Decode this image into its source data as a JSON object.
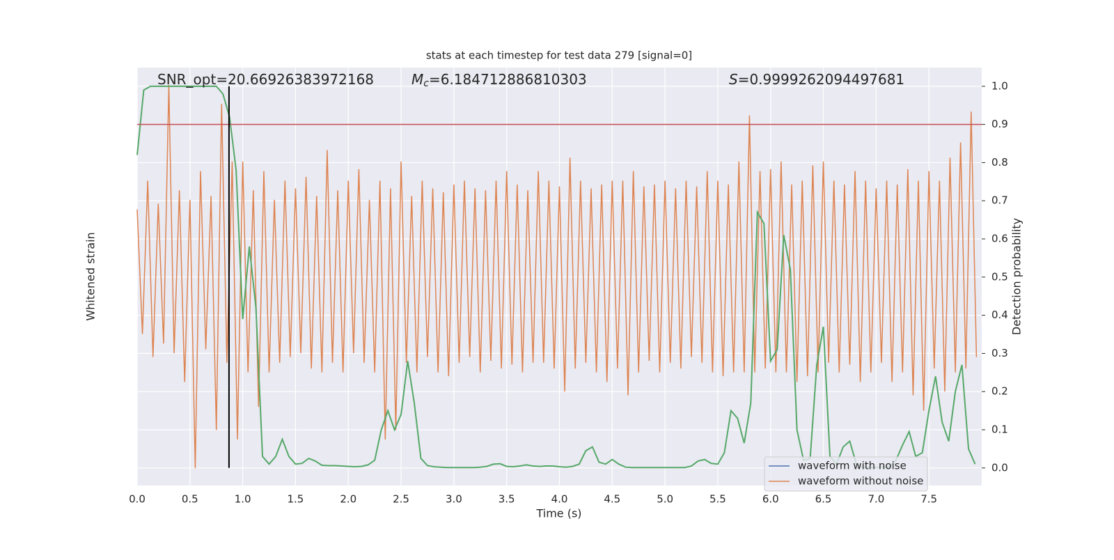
{
  "chart_data": {
    "type": "line",
    "title": "stats at each timestep for test data 279 [signal=0]",
    "xlabel": "Time (s)",
    "ylabel": "Whitened strain",
    "y2label": "Detection probability",
    "xlim": [
      0,
      8
    ],
    "ylim": [
      -1.09,
      1.09
    ],
    "y2lim": [
      -0.046,
      1.049
    ],
    "xticks": [
      {
        "value": 0,
        "label": "0.0"
      },
      {
        "value": 0.5,
        "label": "0.5"
      },
      {
        "value": 1,
        "label": "1.0"
      },
      {
        "value": 1.5,
        "label": "1.5"
      },
      {
        "value": 2,
        "label": "2.0"
      },
      {
        "value": 2.5,
        "label": "2.5"
      },
      {
        "value": 3,
        "label": "3.0"
      },
      {
        "value": 3.5,
        "label": "3.5"
      },
      {
        "value": 4,
        "label": "4.0"
      },
      {
        "value": 4.5,
        "label": "4.5"
      },
      {
        "value": 5,
        "label": "5.0"
      },
      {
        "value": 5.5,
        "label": "5.5"
      },
      {
        "value": 6,
        "label": "6.0"
      },
      {
        "value": 6.5,
        "label": "6.5"
      },
      {
        "value": 7,
        "label": "7.0"
      },
      {
        "value": 7.5,
        "label": "7.5"
      }
    ],
    "y2ticks": [
      {
        "value": 0,
        "label": "0.0"
      },
      {
        "value": 0.1,
        "label": "0.1"
      },
      {
        "value": 0.2,
        "label": "0.2"
      },
      {
        "value": 0.3,
        "label": "0.3"
      },
      {
        "value": 0.4,
        "label": "0.4"
      },
      {
        "value": 0.5,
        "label": "0.5"
      },
      {
        "value": 0.6,
        "label": "0.6"
      },
      {
        "value": 0.7,
        "label": "0.7"
      },
      {
        "value": 0.8,
        "label": "0.8"
      },
      {
        "value": 0.9,
        "label": "0.9"
      },
      {
        "value": 1,
        "label": "1.0"
      }
    ],
    "grid": true,
    "legend": "lower right",
    "annotations": [
      {
        "text": "SNR_opt=20.66926383972168"
      },
      {
        "italic": "M",
        "sub": "c",
        "text": "=6.184712886810303"
      },
      {
        "italic": "S",
        "text": "=0.9999262094497681"
      }
    ],
    "hline": {
      "value": 0.9,
      "color": "#c44e52",
      "axis": "y2"
    },
    "vline": {
      "x": 0.87,
      "color": "#000000"
    },
    "series": [
      {
        "name": "waveform with noise",
        "color": "#4c72b0",
        "x": [],
        "values": []
      },
      {
        "name": "waveform without noise",
        "color": "#dd8452",
        "x": [
          0,
          0.05,
          0.1,
          0.15,
          0.2,
          0.25,
          0.3,
          0.35,
          0.4,
          0.45,
          0.5,
          0.55,
          0.6,
          0.65,
          0.7,
          0.75,
          0.8,
          0.85,
          0.9,
          0.95,
          1,
          1.05,
          1.1,
          1.15,
          1.2,
          1.25,
          1.3,
          1.35,
          1.4,
          1.45,
          1.5,
          1.55,
          1.6,
          1.65,
          1.7,
          1.75,
          1.8,
          1.85,
          1.9,
          1.95,
          2,
          2.05,
          2.1,
          2.15,
          2.2,
          2.25,
          2.3,
          2.35,
          2.4,
          2.45,
          2.5,
          2.55,
          2.6,
          2.65,
          2.7,
          2.75,
          2.8,
          2.85,
          2.9,
          2.95,
          3,
          3.05,
          3.1,
          3.15,
          3.2,
          3.25,
          3.3,
          3.35,
          3.4,
          3.45,
          3.5,
          3.55,
          3.6,
          3.65,
          3.7,
          3.75,
          3.8,
          3.85,
          3.9,
          3.95,
          4,
          4.05,
          4.1,
          4.15,
          4.2,
          4.25,
          4.3,
          4.35,
          4.4,
          4.45,
          4.5,
          4.55,
          4.6,
          4.65,
          4.7,
          4.75,
          4.8,
          4.85,
          4.9,
          4.95,
          5,
          5.05,
          5.1,
          5.15,
          5.2,
          5.25,
          5.3,
          5.35,
          5.4,
          5.45,
          5.5,
          5.55,
          5.6,
          5.65,
          5.7,
          5.75,
          5.8,
          5.85,
          5.9,
          5.95,
          6,
          6.05,
          6.1,
          6.15,
          6.2,
          6.25,
          6.3,
          6.35,
          6.4,
          6.45,
          6.5,
          6.55,
          6.6,
          6.65,
          6.7,
          6.75,
          6.8,
          6.85,
          6.9,
          6.95,
          7,
          7.05,
          7.1,
          7.15,
          7.2,
          7.25,
          7.3,
          7.35,
          7.4,
          7.45,
          7.5,
          7.55,
          7.6,
          7.65,
          7.7,
          7.75,
          7.8,
          7.85,
          7.9,
          7.95
        ],
        "values": [
          0.35,
          -0.3,
          0.5,
          -0.42,
          0.38,
          -0.35,
          1.0,
          -0.4,
          0.45,
          -0.55,
          0.4,
          -1.0,
          0.55,
          -0.38,
          0.42,
          -0.8,
          0.9,
          -0.45,
          0.6,
          -0.85,
          0.6,
          -0.5,
          0.45,
          -0.68,
          0.55,
          -0.5,
          0.4,
          -0.45,
          0.5,
          -0.42,
          0.46,
          -0.4,
          0.52,
          -0.48,
          0.42,
          -0.5,
          0.66,
          -0.45,
          0.45,
          -0.5,
          0.5,
          -0.4,
          0.56,
          -0.45,
          0.4,
          -0.5,
          0.5,
          -0.85,
          0.46,
          -0.8,
          0.6,
          -0.45,
          0.42,
          -0.5,
          0.5,
          -0.42,
          0.46,
          -0.5,
          0.44,
          -0.52,
          0.48,
          -0.45,
          0.5,
          -0.42,
          0.46,
          -0.5,
          0.45,
          -0.44,
          0.5,
          -0.48,
          0.55,
          -0.46,
          0.48,
          -0.5,
          0.45,
          -0.45,
          0.55,
          -0.45,
          0.5,
          -0.48,
          0.47,
          -0.6,
          0.62,
          -0.48,
          0.5,
          -0.45,
          0.46,
          -0.5,
          0.48,
          -0.55,
          0.5,
          -0.48,
          0.5,
          -0.62,
          0.55,
          -0.5,
          0.47,
          -0.44,
          0.48,
          -0.5,
          0.5,
          -0.45,
          0.46,
          -0.48,
          0.5,
          -0.42,
          0.47,
          -0.45,
          0.55,
          -0.5,
          0.5,
          -0.52,
          0.48,
          -0.5,
          0.6,
          -0.5,
          0.84,
          -0.5,
          0.55,
          -0.48,
          0.56,
          -0.5,
          0.6,
          -0.5,
          0.48,
          -0.55,
          0.5,
          -0.52,
          0.58,
          -0.5,
          0.6,
          -0.45,
          0.5,
          -0.5,
          0.48,
          -0.46,
          0.55,
          -0.55,
          0.5,
          -0.5,
          0.46,
          -0.45,
          0.5,
          -0.55,
          0.48,
          -0.5,
          0.56,
          -0.62,
          0.5,
          -0.7,
          0.55,
          -0.48,
          0.5,
          -0.6,
          0.62,
          -0.5,
          0.7,
          -0.48,
          0.86,
          -0.42
        ]
      },
      {
        "color": "#55a868",
        "axis": "y2",
        "x": [
          0,
          0.0625,
          0.125,
          0.1875,
          0.25,
          0.3125,
          0.375,
          0.4375,
          0.5,
          0.5625,
          0.625,
          0.6875,
          0.75,
          0.8125,
          0.875,
          0.9375,
          1,
          1.0625,
          1.125,
          1.1875,
          1.25,
          1.3125,
          1.375,
          1.4375,
          1.5,
          1.5625,
          1.625,
          1.6875,
          1.75,
          1.8125,
          1.875,
          1.9375,
          2,
          2.0625,
          2.125,
          2.1875,
          2.25,
          2.3125,
          2.375,
          2.4375,
          2.5,
          2.5625,
          2.625,
          2.6875,
          2.75,
          2.8125,
          2.875,
          2.9375,
          3,
          3.0625,
          3.125,
          3.1875,
          3.25,
          3.3125,
          3.375,
          3.4375,
          3.5,
          3.5625,
          3.625,
          3.6875,
          3.75,
          3.8125,
          3.875,
          3.9375,
          4,
          4.0625,
          4.125,
          4.1875,
          4.25,
          4.3125,
          4.375,
          4.4375,
          4.5,
          4.5625,
          4.625,
          4.6875,
          4.75,
          4.8125,
          4.875,
          4.9375,
          5,
          5.0625,
          5.125,
          5.1875,
          5.25,
          5.3125,
          5.375,
          5.4375,
          5.5,
          5.5625,
          5.625,
          5.6875,
          5.75,
          5.8125,
          5.875,
          5.9375,
          6,
          6.0625,
          6.125,
          6.1875,
          6.25,
          6.3125,
          6.375,
          6.4375,
          6.5,
          6.5625,
          6.625,
          6.6875,
          6.75,
          6.8125,
          6.875,
          6.9375,
          7,
          7.0625,
          7.125,
          7.1875,
          7.25,
          7.3125,
          7.375,
          7.4375,
          7.5,
          7.5625,
          7.625,
          7.6875,
          7.75,
          7.8125,
          7.875,
          7.9375
        ],
        "values": [
          0.82,
          0.99,
          1.0,
          1.0,
          1.0,
          1.0,
          1.0,
          1.0,
          1.0,
          1.0,
          1.0,
          1.0,
          1.0,
          0.98,
          0.92,
          0.78,
          0.39,
          0.58,
          0.42,
          0.03,
          0.01,
          0.03,
          0.075,
          0.03,
          0.01,
          0.012,
          0.025,
          0.018,
          0.007,
          0.006,
          0.006,
          0.005,
          0.004,
          0.003,
          0.004,
          0.008,
          0.02,
          0.1,
          0.15,
          0.1,
          0.14,
          0.28,
          0.17,
          0.025,
          0.006,
          0.003,
          0.002,
          0.001,
          0.001,
          0.001,
          0.001,
          0.001,
          0.002,
          0.004,
          0.01,
          0.011,
          0.004,
          0.003,
          0.005,
          0.008,
          0.005,
          0.004,
          0.005,
          0.005,
          0.003,
          0.002,
          0.004,
          0.01,
          0.045,
          0.055,
          0.015,
          0.01,
          0.022,
          0.01,
          0.002,
          0.001,
          0.001,
          0.001,
          0.001,
          0.001,
          0.001,
          0.001,
          0.001,
          0.001,
          0.005,
          0.018,
          0.022,
          0.012,
          0.01,
          0.04,
          0.15,
          0.13,
          0.065,
          0.17,
          0.67,
          0.64,
          0.28,
          0.31,
          0.61,
          0.52,
          0.1,
          0.02,
          0.025,
          0.27,
          0.37,
          0.03,
          0.01,
          0.055,
          0.07,
          0.01,
          0.002,
          0.001,
          0.001,
          0.002,
          0.003,
          0.02,
          0.06,
          0.095,
          0.03,
          0.04,
          0.15,
          0.24,
          0.12,
          0.07,
          0.2,
          0.27,
          0.05,
          0.01
        ]
      }
    ]
  }
}
